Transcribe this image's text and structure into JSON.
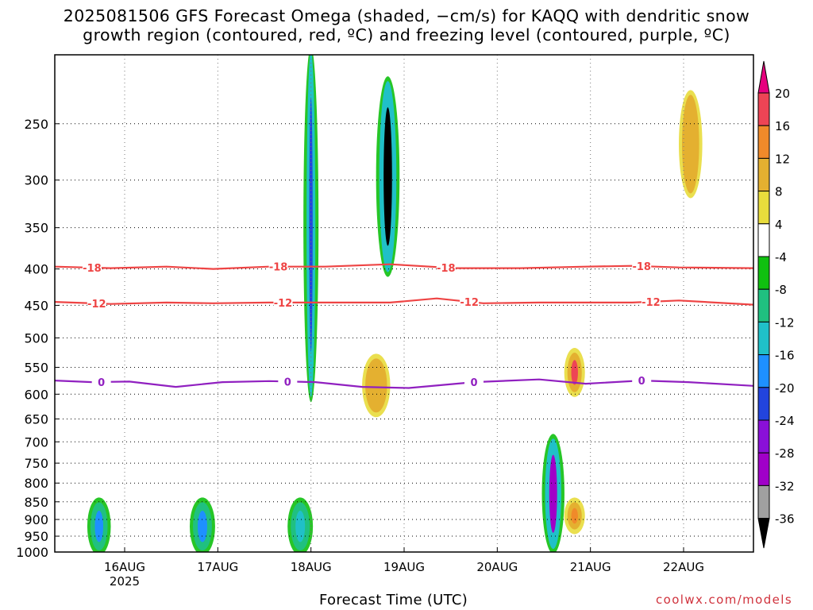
{
  "chart_data": {
    "type": "heatmap",
    "title_line1": "2025081506 GFS Forecast Omega (shaded, −cm/s) for KAQQ with dendritic snow",
    "title_line2": "growth region (contoured, red, ºC) and freezing level (contoured, purple, ºC)",
    "xlabel": "Forecast Time (UTC)",
    "ylabel": "",
    "credit": "coolwx.com/models",
    "y_axis": {
      "unit": "hPa",
      "scale": "log-pressure",
      "range": [
        1000,
        200
      ],
      "ticks": [
        250,
        300,
        350,
        400,
        450,
        500,
        550,
        600,
        650,
        700,
        750,
        800,
        850,
        900,
        950,
        1000
      ]
    },
    "x_axis": {
      "unit": "days since 15 Aug 2025 06 UTC",
      "range": [
        0,
        7.5
      ],
      "ticks": [
        {
          "label": "16AUG",
          "sublabel": "2025",
          "x": 0.75
        },
        {
          "label": "17AUG",
          "sublabel": "",
          "x": 1.75
        },
        {
          "label": "18AUG",
          "sublabel": "",
          "x": 2.75
        },
        {
          "label": "19AUG",
          "sublabel": "",
          "x": 3.75
        },
        {
          "label": "20AUG",
          "sublabel": "",
          "x": 4.75
        },
        {
          "label": "21AUG",
          "sublabel": "",
          "x": 5.75
        },
        {
          "label": "22AUG",
          "sublabel": "",
          "x": 6.75
        }
      ]
    },
    "grid": "dotted",
    "colorbar": {
      "labels": [
        "20",
        "16",
        "12",
        "8",
        "4",
        "-4",
        "-8",
        "-12",
        "-16",
        "-20",
        "-24",
        "-28",
        "-32",
        "-36"
      ],
      "colors": [
        "#ee4455",
        "#f08a2a",
        "#e4b030",
        "#e8dc3c",
        "#ffffff",
        "#10c010",
        "#20c080",
        "#20c0c8",
        "#1e90ff",
        "#2244dd",
        "#8a10d8",
        "#a000c8",
        "#a0a0a0"
      ],
      "top_arrow_color": "#e6007e",
      "bottom_arrow_color": "#000000"
    },
    "contours": [
      {
        "name": "-18",
        "color": "#ee4444",
        "points": [
          [
            0,
            397
          ],
          [
            0.6,
            399
          ],
          [
            1.2,
            397
          ],
          [
            1.7,
            400
          ],
          [
            2.3,
            397
          ],
          [
            2.9,
            397
          ],
          [
            3.6,
            394
          ],
          [
            4.3,
            399
          ],
          [
            5,
            399
          ],
          [
            5.7,
            397
          ],
          [
            6.2,
            396
          ],
          [
            6.7,
            398
          ],
          [
            7.5,
            399
          ]
        ],
        "labels": [
          0.4,
          2.4,
          4.2,
          6.3
        ]
      },
      {
        "name": "-12",
        "color": "#ee4444",
        "points": [
          [
            0,
            445
          ],
          [
            0.6,
            448
          ],
          [
            1.2,
            446
          ],
          [
            1.7,
            447
          ],
          [
            2.3,
            446
          ],
          [
            2.9,
            446
          ],
          [
            3.6,
            446
          ],
          [
            4.1,
            440
          ],
          [
            4.6,
            447
          ],
          [
            5.2,
            446
          ],
          [
            5.7,
            446
          ],
          [
            6.2,
            446
          ],
          [
            6.7,
            443
          ],
          [
            7.5,
            449
          ]
        ],
        "labels": [
          0.45,
          2.45,
          4.45,
          6.4
        ]
      },
      {
        "name": "0",
        "color": "#9020c0",
        "points": [
          [
            0,
            574
          ],
          [
            0.4,
            577
          ],
          [
            0.8,
            576
          ],
          [
            1.3,
            586
          ],
          [
            1.8,
            577
          ],
          [
            2.3,
            575
          ],
          [
            2.8,
            577
          ],
          [
            3.3,
            586
          ],
          [
            3.8,
            588
          ],
          [
            4.5,
            577
          ],
          [
            5.2,
            572
          ],
          [
            5.7,
            580
          ],
          [
            6.3,
            574
          ],
          [
            6.8,
            577
          ],
          [
            7.5,
            584
          ]
        ],
        "labels": [
          0.5,
          2.5,
          4.5,
          6.3
        ]
      }
    ],
    "shaded_regions": [
      {
        "x": [
          0.4,
          0.55
        ],
        "p": [
          860,
          985
        ],
        "omega": -16
      },
      {
        "x": [
          1.5,
          1.67
        ],
        "p": [
          860,
          985
        ],
        "omega": -16
      },
      {
        "x": [
          2.55,
          2.72
        ],
        "p": [
          860,
          985
        ],
        "omega": -12
      },
      {
        "x": [
          2.72,
          2.78
        ],
        "p": [
          200,
          600
        ],
        "omega": -20
      },
      {
        "x": [
          3.5,
          3.65
        ],
        "p": [
          220,
          400
        ],
        "omega": -36
      },
      {
        "x": [
          3.35,
          3.55
        ],
        "p": [
          540,
          630
        ],
        "omega": 12
      },
      {
        "x": [
          5.28,
          5.42
        ],
        "p": [
          700,
          980
        ],
        "omega": -28
      },
      {
        "x": [
          5.52,
          5.64
        ],
        "p": [
          530,
          590
        ],
        "omega": 20
      },
      {
        "x": [
          5.52,
          5.64
        ],
        "p": [
          860,
          920
        ],
        "omega": 16
      },
      {
        "x": [
          6.75,
          6.9
        ],
        "p": [
          230,
          310
        ],
        "omega": 12
      }
    ],
    "surface": "terrain"
  }
}
